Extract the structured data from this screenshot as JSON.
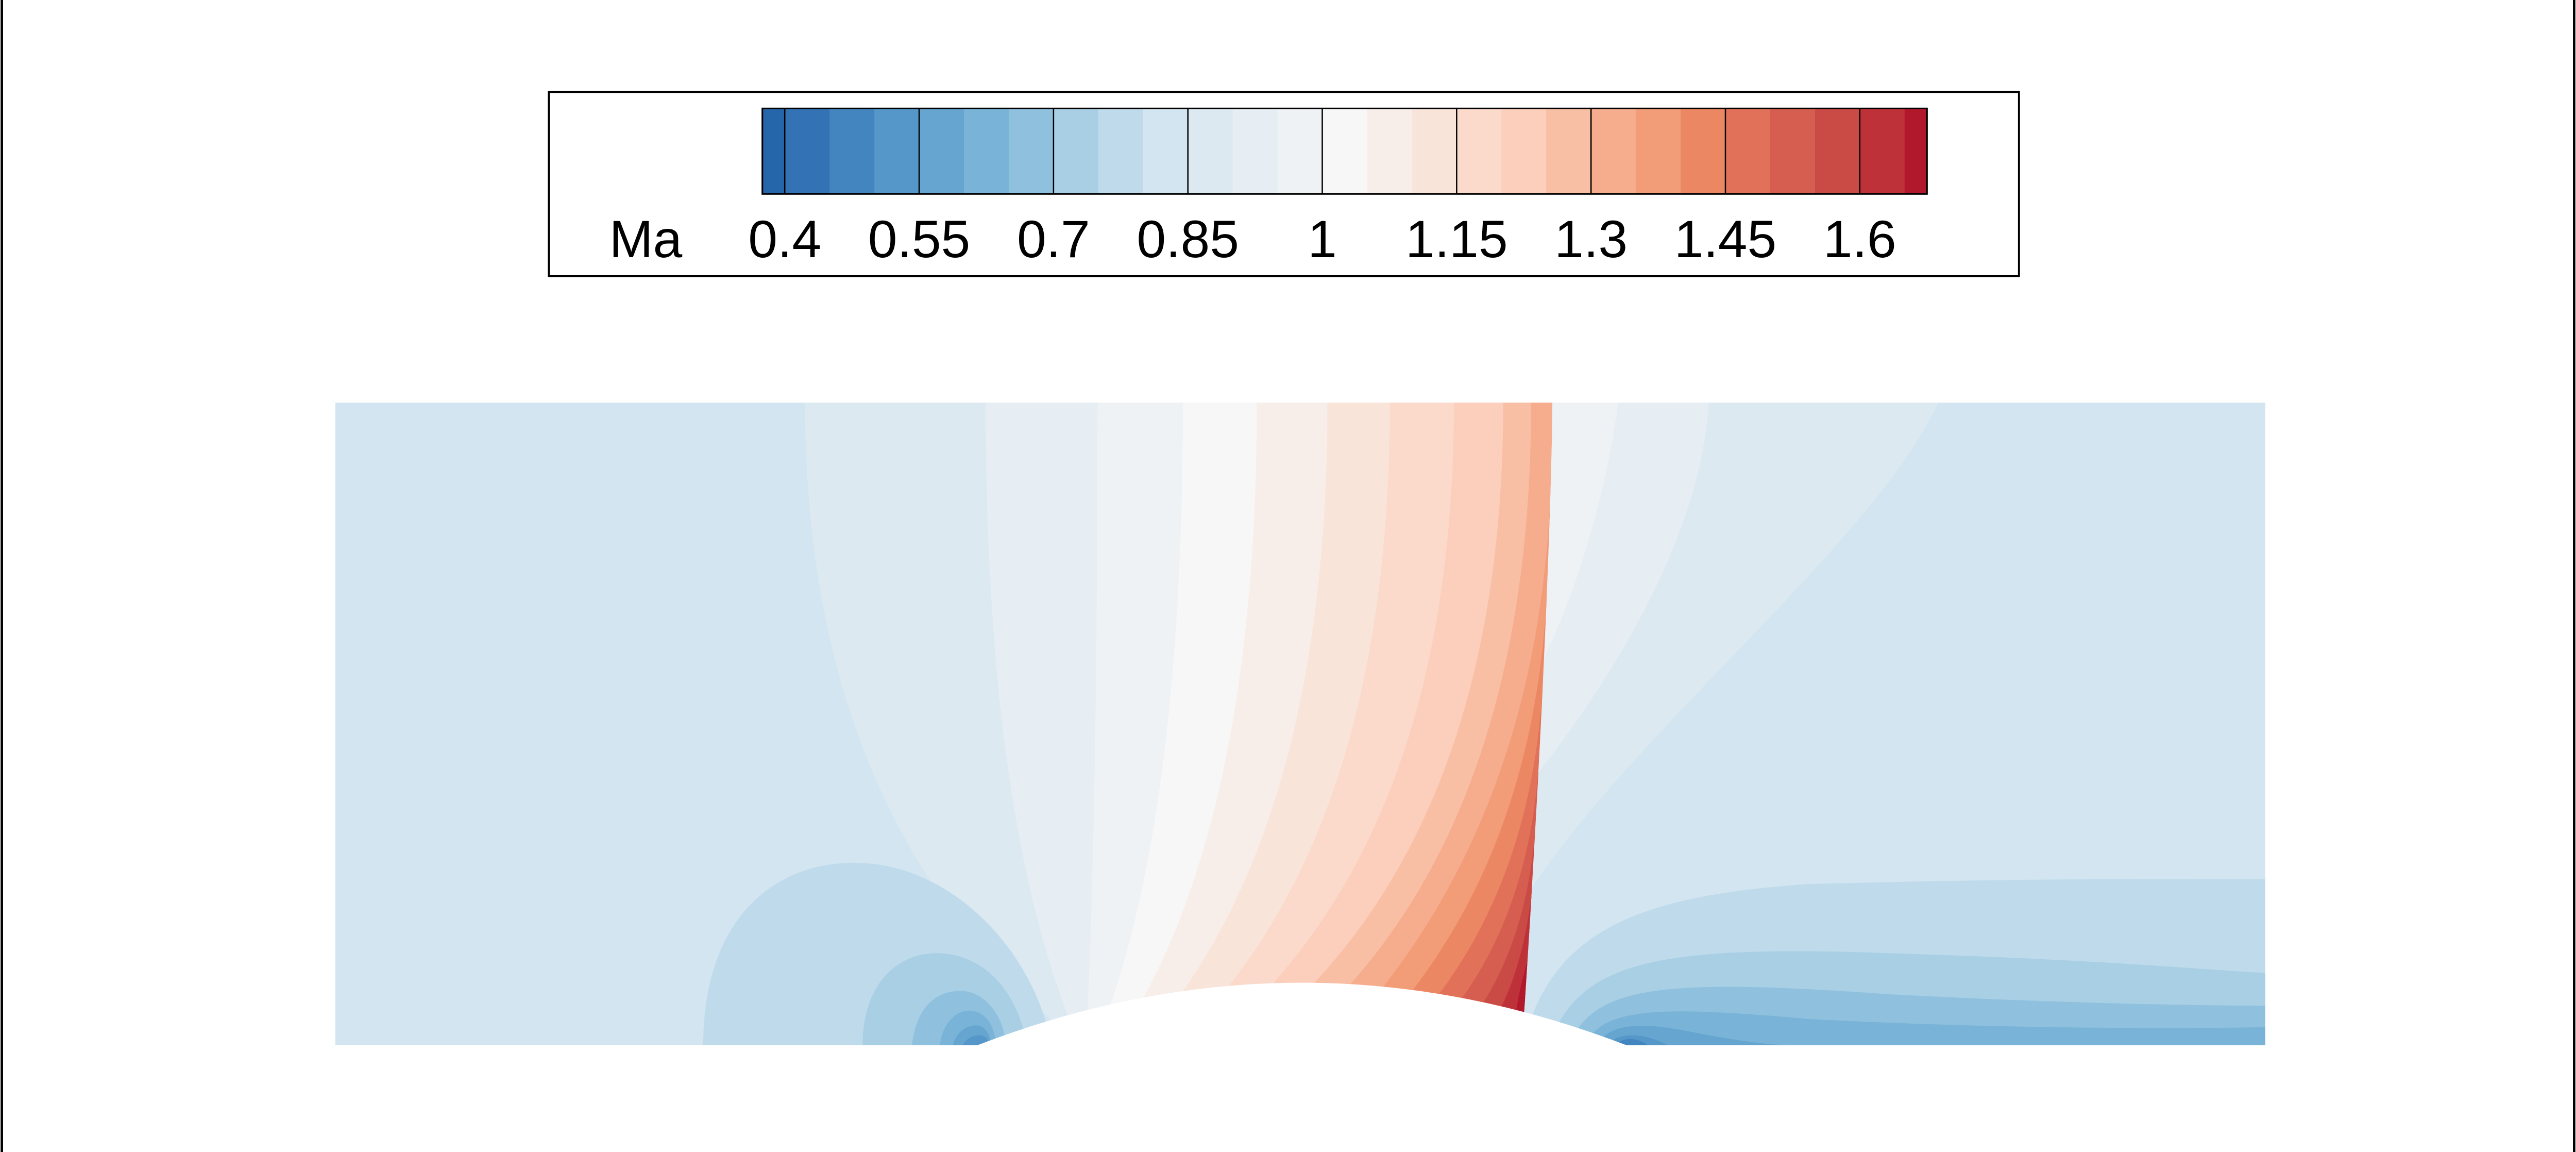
{
  "chart_data": {
    "type": "contour",
    "colorbar": {
      "label": "Ma",
      "clim": [
        0.375,
        1.675
      ],
      "ticks": [
        0.4,
        0.55,
        0.7,
        0.85,
        1,
        1.15,
        1.3,
        1.45,
        1.6
      ],
      "levels": [
        0.4,
        0.45,
        0.5,
        0.55,
        0.6,
        0.65,
        0.7,
        0.75,
        0.8,
        0.85,
        0.9,
        0.95,
        1,
        1.05,
        1.1,
        1.15,
        1.2,
        1.25,
        1.3,
        1.35,
        1.4,
        1.45,
        1.5,
        1.55,
        1.6,
        1.65
      ],
      "colors": [
        "#2565a9",
        "#3272b5",
        "#4385be",
        "#5497c8",
        "#65a5cf",
        "#79b3d7",
        "#8fc1de",
        "#a9cfe5",
        "#bfdbeb",
        "#d2e5f0",
        "#dde9f1",
        "#e6eef4",
        "#eef2f5",
        "#f7f7f7",
        "#f8eee9",
        "#f9e4da",
        "#fbdacb",
        "#fccfbc",
        "#f9bfa5",
        "#f6ad8e",
        "#f29c78",
        "#ec8763",
        "#e17259",
        "#d65e50",
        "#ca4a45",
        "#bf3139",
        "#b2182b"
      ]
    }
  }
}
